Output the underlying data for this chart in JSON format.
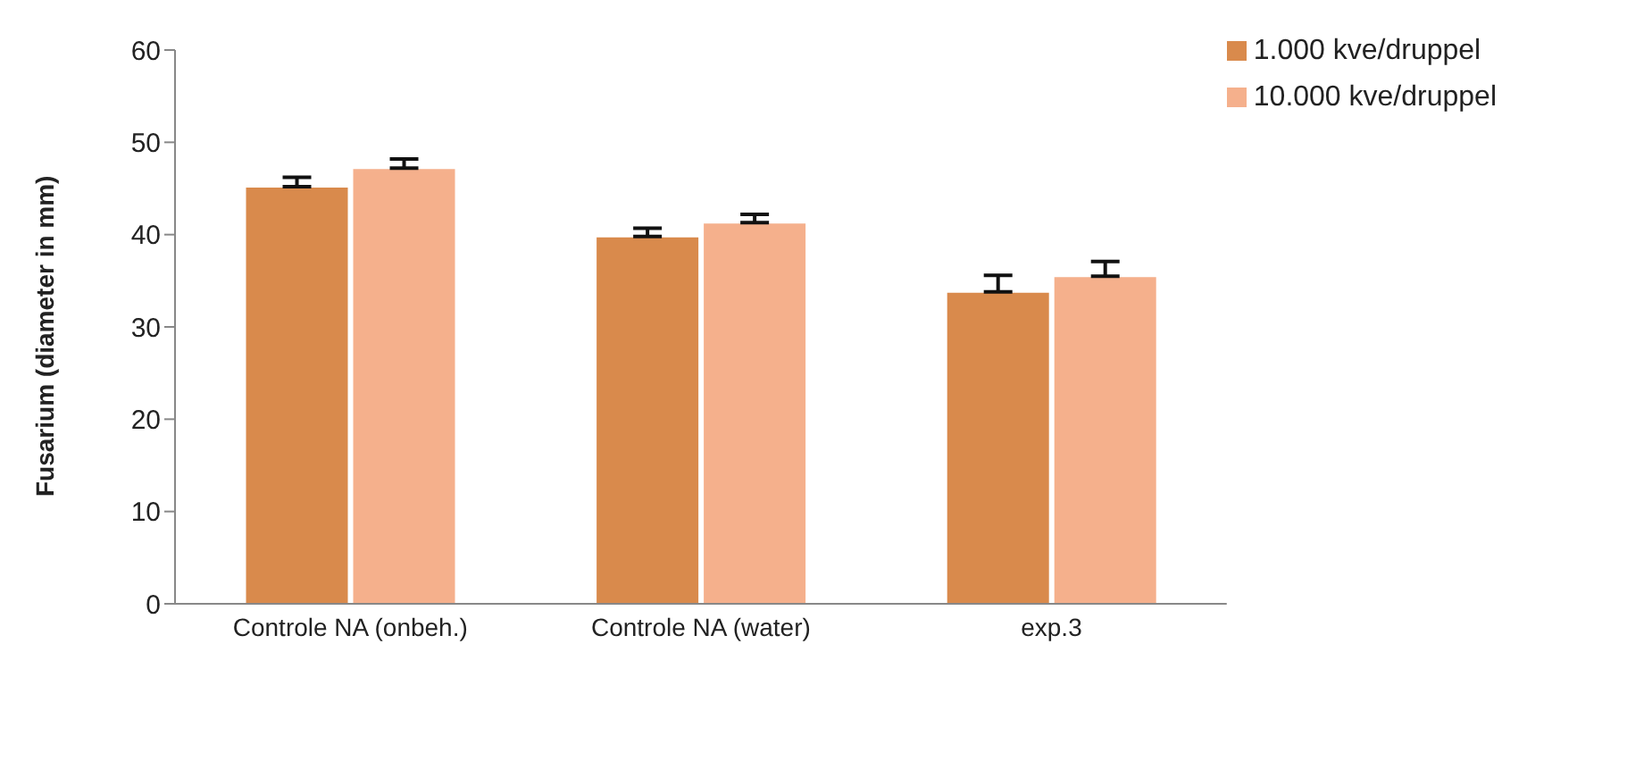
{
  "chart_data": {
    "type": "bar",
    "ylabel": "Fusarium (diameter in mm)",
    "categories": [
      "Controle NA (onbeh.)",
      "Controle NA (water)",
      "exp.3"
    ],
    "series": [
      {
        "name": "1.000 kve/druppel",
        "color": "#d98a4c",
        "values": [
          45.2,
          39.8,
          33.8
        ],
        "errors": [
          [
            45.2,
            46.2
          ],
          [
            39.8,
            40.7
          ],
          [
            33.8,
            35.6
          ]
        ]
      },
      {
        "name": "10.000 kve/druppel",
        "color": "#f5b08c",
        "values": [
          47.2,
          41.3,
          35.5
        ],
        "errors": [
          [
            47.2,
            48.2
          ],
          [
            41.3,
            42.2
          ],
          [
            35.5,
            37.1
          ]
        ]
      }
    ],
    "ylim": [
      0,
      60
    ],
    "yticks": [
      0,
      10,
      20,
      30,
      40,
      50,
      60
    ],
    "grid": false,
    "legend": "top right"
  }
}
